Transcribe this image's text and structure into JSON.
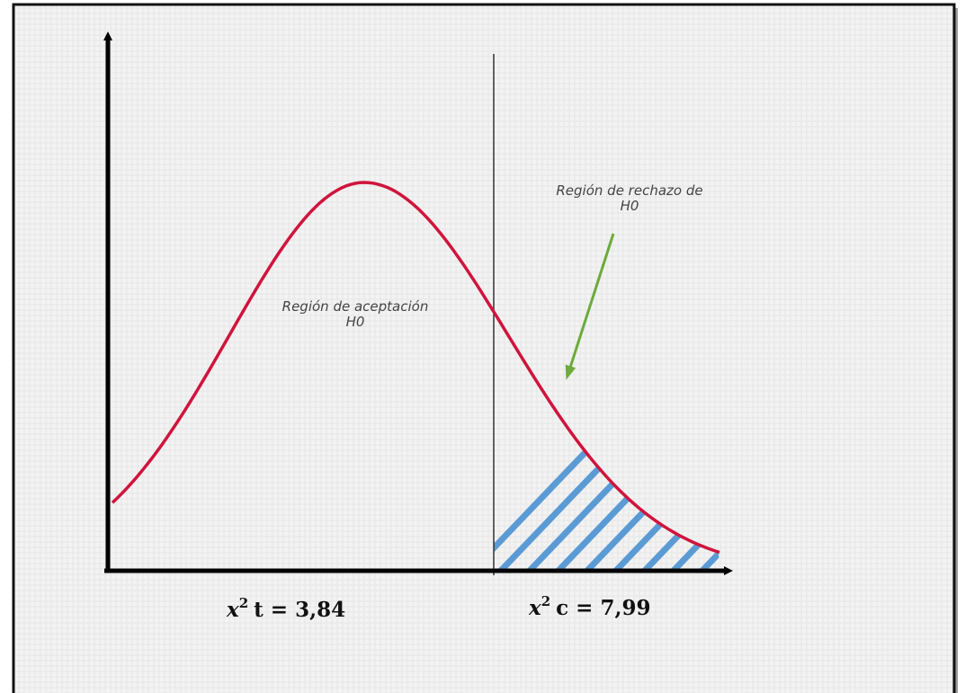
{
  "acceptance_region": {
    "lines": [
      "Región de aceptación",
      "H0"
    ]
  },
  "rejection_region": {
    "lines": [
      "Región de rechazo de",
      "H0"
    ]
  },
  "critical_value_table": {
    "base": "x",
    "sup": "2",
    "rest": "t = 3,84"
  },
  "critical_value_calc": {
    "base": "x",
    "sup": "2",
    "rest": "c = 7,99"
  }
}
